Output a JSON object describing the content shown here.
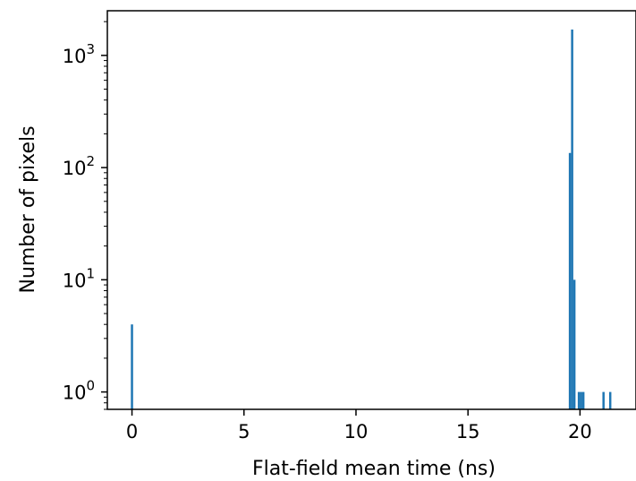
{
  "chart_data": {
    "type": "bar",
    "xlabel": "Flat-field mean time (ns)",
    "ylabel": "Number of pixels",
    "yscale": "log",
    "xlim": [
      -1.1,
      22.5
    ],
    "ylim": [
      0.7,
      2500
    ],
    "xticks": [
      {
        "value": 0,
        "label": "0"
      },
      {
        "value": 5,
        "label": "5"
      },
      {
        "value": 10,
        "label": "10"
      },
      {
        "value": 15,
        "label": "15"
      },
      {
        "value": 20,
        "label": "20"
      }
    ],
    "yticks": [
      {
        "value": 1,
        "base": "10",
        "exp": "0"
      },
      {
        "value": 10,
        "base": "10",
        "exp": "1"
      },
      {
        "value": 100,
        "base": "10",
        "exp": "2"
      },
      {
        "value": 1000,
        "base": "10",
        "exp": "3"
      }
    ],
    "bin_width": 0.1,
    "bars": [
      {
        "x": 0.0,
        "count": 4
      },
      {
        "x": 19.55,
        "count": 135
      },
      {
        "x": 19.65,
        "count": 1700
      },
      {
        "x": 19.75,
        "count": 10
      },
      {
        "x": 19.95,
        "count": 1
      },
      {
        "x": 20.05,
        "count": 1
      },
      {
        "x": 20.15,
        "count": 1
      },
      {
        "x": 21.05,
        "count": 1
      },
      {
        "x": 21.35,
        "count": 1
      }
    ],
    "grid": false,
    "color": "#1f77b4"
  }
}
